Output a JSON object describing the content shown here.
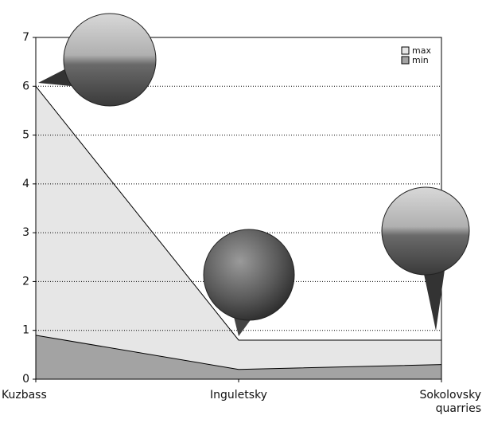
{
  "chart_data": {
    "type": "area",
    "categories": [
      "Kuzbass",
      "Inguletsky",
      "Sokolovsky quarries"
    ],
    "series": [
      {
        "name": "max",
        "color": "#e6e6e6",
        "values": [
          6,
          0.8,
          0.8
        ]
      },
      {
        "name": "min",
        "color": "#a3a3a3",
        "values": [
          0.9,
          0.2,
          0.3
        ]
      }
    ],
    "ylim": [
      0,
      7
    ],
    "yticks": [
      0,
      1,
      2,
      3,
      4,
      5,
      6,
      7
    ],
    "grid": true,
    "legend": "top-right"
  }
}
